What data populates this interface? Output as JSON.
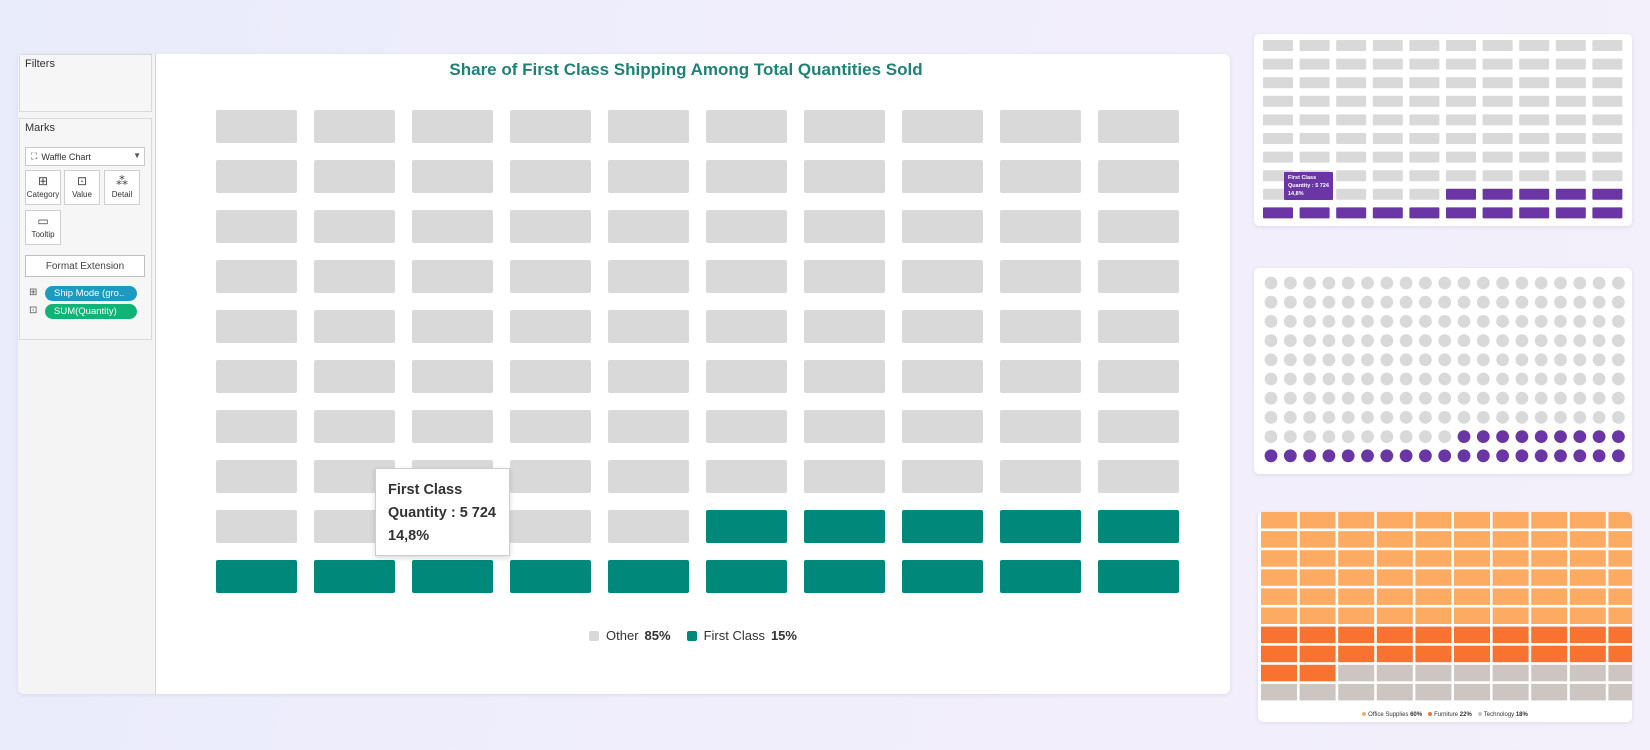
{
  "sidebar": {
    "filters_title": "Filters",
    "marks_title": "Marks",
    "mark_type": "Waffle Chart",
    "buttons": {
      "category": "Category",
      "value": "Value",
      "detail": "Detail",
      "tooltip": "Tooltip"
    },
    "format_extension": "Format Extension",
    "pills": [
      {
        "label": "Ship Mode (gro..",
        "color": "#1c9ac0"
      },
      {
        "label": "SUM(Quantity)",
        "color": "#11b474"
      }
    ]
  },
  "tooltip": {
    "line1": "First Class",
    "line2": "Quantity : 5 724",
    "line3": "14,8%"
  },
  "colors": {
    "other": "#d9d9d9",
    "first_class": "#00897a"
  },
  "chart_data": {
    "type": "waffle",
    "title": "Share of First Class Shipping Among Total Quantities Sold",
    "grid": {
      "rows": 10,
      "cols": 10
    },
    "filled": 15,
    "series": [
      {
        "name": "Other",
        "value_label": "85%",
        "percent": 85,
        "color": "#d9d9d9"
      },
      {
        "name": "First Class",
        "value_label": "15%",
        "percent": 15,
        "color": "#00897a"
      }
    ]
  },
  "thumbnails": {
    "purple_rect": {
      "type": "waffle",
      "rows": 10,
      "cols": 10,
      "filled": 15,
      "colors": {
        "other": "#d9d9d9",
        "filled": "#6a35a5"
      },
      "tooltip": {
        "line1": "First Class",
        "line2": "Quantity : 5 724",
        "line3": "14,8%"
      }
    },
    "purple_dots": {
      "type": "waffle",
      "rows": 10,
      "cols": 19,
      "filled": 28,
      "colors": {
        "other": "#d9d9d9",
        "filled": "#6a35a5"
      }
    },
    "orange": {
      "type": "waffle",
      "rows": 10,
      "cols": 10,
      "series": [
        {
          "name": "Office Supplies",
          "label": "60%",
          "cells": 60,
          "color": "#fdab63"
        },
        {
          "name": "Furniture",
          "label": "22%",
          "cells": 22,
          "color": "#f8732f"
        },
        {
          "name": "Technology",
          "label": "18%",
          "cells": 18,
          "color": "#cdc5c2"
        }
      ]
    }
  }
}
